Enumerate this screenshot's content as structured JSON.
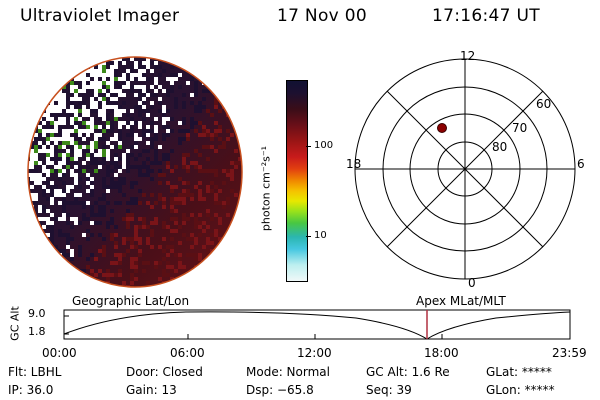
{
  "header": {
    "title": "Ultraviolet Imager",
    "date": "17 Nov 00",
    "time": "17:16:47 UT"
  },
  "colorbar": {
    "unit_label": "photon cm⁻²s⁻¹",
    "ticks": [
      "100",
      "10"
    ],
    "colors": [
      "#111133",
      "#3a0d18",
      "#6a0f18",
      "#9a1515",
      "#c81b1b",
      "#e24010",
      "#f08a00",
      "#f5c200",
      "#e8e800",
      "#9be21a",
      "#48c742",
      "#2bb6b0",
      "#45c7e0",
      "#bdefef",
      "#f0f8f8"
    ]
  },
  "polar_plot": {
    "mlt_labels": {
      "top": "12",
      "left": "18",
      "right": "6",
      "bottom": "0"
    },
    "lat_labels": [
      "60",
      "70",
      "80"
    ],
    "spacecraft_marker": {
      "color": "#8b0000"
    }
  },
  "timeline": {
    "left_title": "Geographic Lat/Lon",
    "right_title": "Apex MLat/MLT",
    "y_axis_label": "GC Alt",
    "y_ticks": [
      "9.0",
      "1.8"
    ],
    "x_ticks": [
      "00:00",
      "06:00",
      "12:00",
      "18:00",
      "23:59"
    ],
    "marker_time": "17:16:47"
  },
  "info": {
    "flt": "Flt: LBHL",
    "ip": "IP: 36.0",
    "door": "Door: Closed",
    "gain": "Gain: 13",
    "mode": "Mode: Normal",
    "dsp": "Dsp:  −65.8",
    "gc_alt": "GC Alt: 1.6 Re",
    "seq": "Seq: 39",
    "glat": "GLat: *****",
    "glon": "GLon: *****"
  },
  "colors": {
    "image_edge": "#c8501e",
    "marker_line": "#b03040",
    "aurora_dark": "#5a0f14",
    "green_speckle": "#3d8a1a"
  }
}
